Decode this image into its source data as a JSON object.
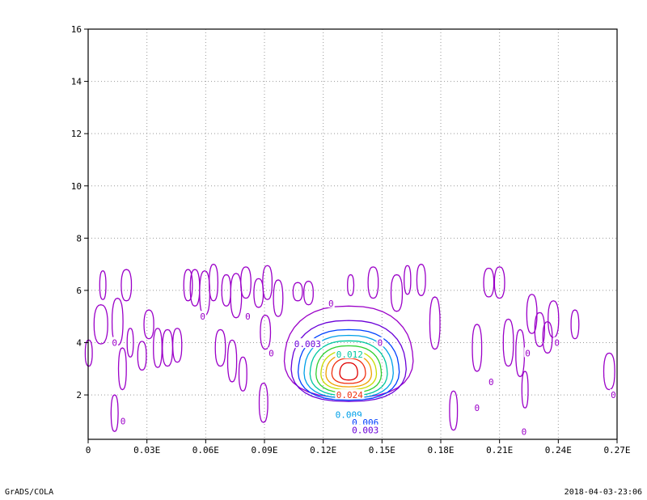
{
  "footer": {
    "left": "GrADS/COLA",
    "right": "2018-04-03-23:06"
  },
  "chart_data": {
    "type": "contour",
    "title": "",
    "xlabel": "",
    "ylabel": "",
    "xlim": [
      0,
      0.27
    ],
    "ylim": [
      0.3,
      16
    ],
    "x_ticks": [
      0,
      0.03,
      0.06,
      0.09,
      0.12,
      0.15,
      0.18,
      0.21,
      0.24,
      0.27
    ],
    "x_tick_labels": [
      "0",
      "0.03E",
      "0.06E",
      "0.09E",
      "0.12E",
      "0.15E",
      "0.18E",
      "0.21E",
      "0.24E",
      "0.27E"
    ],
    "y_ticks": [
      2,
      4,
      6,
      8,
      10,
      12,
      14,
      16
    ],
    "y_tick_labels": [
      "2",
      "4",
      "6",
      "8",
      "10",
      "12",
      "14",
      "16"
    ],
    "grid": true,
    "contour_levels": [
      0,
      0.003,
      0.006,
      0.009,
      0.012,
      0.015,
      0.018,
      0.021,
      0.024,
      0.027
    ],
    "level_colors": [
      "#9b00c8",
      "#6a00d8",
      "#0040ff",
      "#00a0e8",
      "#00c8a0",
      "#30d030",
      "#c8dc00",
      "#f0a000",
      "#f03010",
      "#e00000"
    ],
    "peak": {
      "x": 0.133,
      "y": 2.9
    },
    "contour_labels": [
      {
        "text": "0.012",
        "x": 0.1335,
        "y": 3.55,
        "level": 4
      },
      {
        "text": "0.003",
        "x": 0.112,
        "y": 3.95,
        "level": 1
      },
      {
        "text": "0.024",
        "x": 0.1335,
        "y": 2.0,
        "level": 8
      },
      {
        "text": "0.009",
        "x": 0.133,
        "y": 1.25,
        "level": 3
      },
      {
        "text": "0.006",
        "x": 0.1415,
        "y": 0.95,
        "level": 2
      },
      {
        "text": "0.003",
        "x": 0.1415,
        "y": 0.65,
        "level": 1
      },
      {
        "text": "0",
        "x": 0.0135,
        "y": 4.0,
        "level": 0
      },
      {
        "text": "0",
        "x": 0.0178,
        "y": 1.0,
        "level": 0
      },
      {
        "text": "0",
        "x": 0.0585,
        "y": 5.0,
        "level": 0
      },
      {
        "text": "0",
        "x": 0.0815,
        "y": 5.0,
        "level": 0
      },
      {
        "text": "0",
        "x": 0.0935,
        "y": 3.6,
        "level": 0
      },
      {
        "text": "0",
        "x": 0.124,
        "y": 5.5,
        "level": 0
      },
      {
        "text": "0",
        "x": 0.149,
        "y": 4.0,
        "level": 0
      },
      {
        "text": "0",
        "x": 0.1985,
        "y": 1.5,
        "level": 0
      },
      {
        "text": "0",
        "x": 0.2057,
        "y": 2.5,
        "level": 0
      },
      {
        "text": "0",
        "x": 0.2225,
        "y": 0.6,
        "level": 0
      },
      {
        "text": "0",
        "x": 0.2244,
        "y": 3.6,
        "level": 0
      },
      {
        "text": "0",
        "x": 0.2393,
        "y": 4.0,
        "level": 0
      },
      {
        "text": "0",
        "x": 0.2681,
        "y": 2.0,
        "level": 0
      }
    ]
  }
}
